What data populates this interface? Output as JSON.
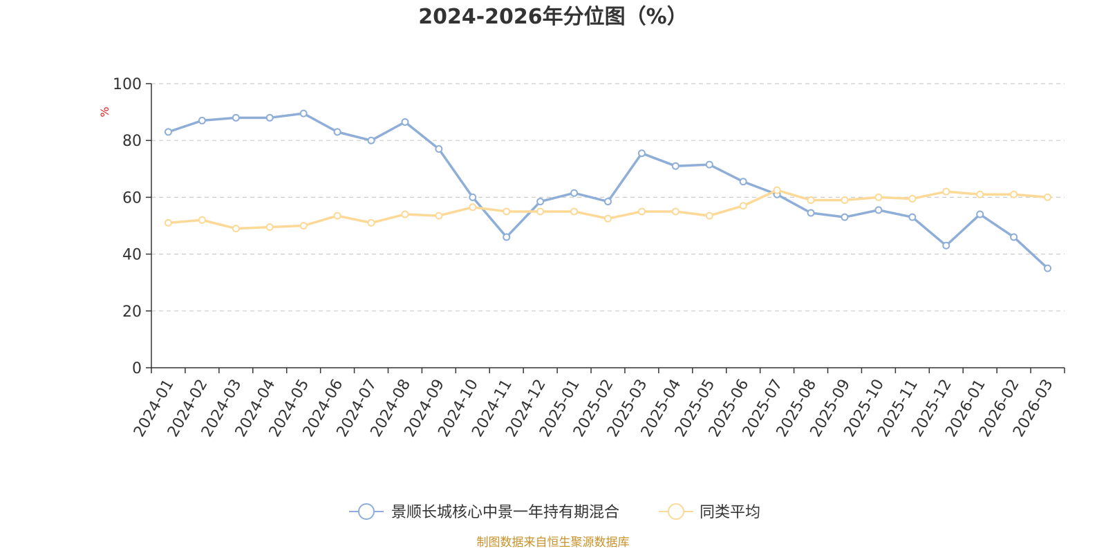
{
  "chart_data": {
    "type": "line",
    "title": "2024-2026年分位图（%）",
    "ylabel": "%",
    "ylim": [
      0,
      100
    ],
    "yticks": [
      0,
      20,
      40,
      60,
      80,
      100
    ],
    "grid": true,
    "legend_position": "bottom",
    "categories": [
      "2024-01",
      "2024-02",
      "2024-03",
      "2024-04",
      "2024-05",
      "2024-06",
      "2024-07",
      "2024-08",
      "2024-09",
      "2024-10",
      "2024-11",
      "2024-12",
      "2025-01",
      "2025-02",
      "2025-03",
      "2025-04",
      "2025-05",
      "2025-06",
      "2025-07",
      "2025-08",
      "2025-09",
      "2025-10",
      "2025-11",
      "2025-12",
      "2026-01",
      "2026-02",
      "2026-03"
    ],
    "series": [
      {
        "name": "景顺长城核心中景一年持有期混合",
        "color": "#8eaed8",
        "values": [
          83,
          87,
          88,
          88,
          89.5,
          83,
          80,
          86.5,
          77,
          60,
          46,
          58.5,
          61.5,
          58.5,
          75.5,
          71,
          71.5,
          65.5,
          61,
          54.5,
          53,
          55.5,
          53,
          43,
          54,
          46,
          35
        ]
      },
      {
        "name": "同类平均",
        "color": "#fdd998",
        "values": [
          51,
          52,
          49,
          49.5,
          50,
          53.5,
          51,
          54,
          53.5,
          56.5,
          55,
          55,
          55,
          52.5,
          55,
          55,
          53.5,
          57,
          62.5,
          59,
          59,
          60,
          59.5,
          62,
          61,
          61,
          60
        ]
      }
    ]
  },
  "source_note": "制图数据来自恒生聚源数据库"
}
